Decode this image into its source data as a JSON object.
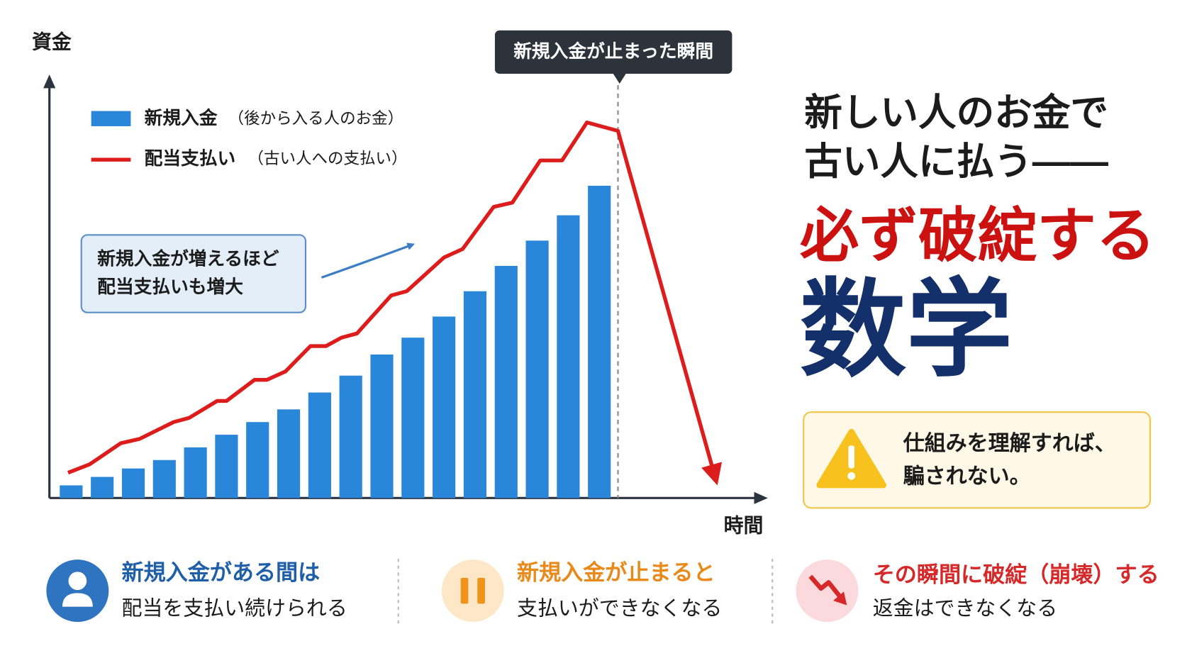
{
  "chart_data": {
    "type": "bar_line",
    "ylabel": "資金",
    "xlabel": "時間",
    "xlim": [
      0.3,
      23.3
    ],
    "ylim": [
      0,
      100
    ],
    "annotation": "新規入金が止まった瞬間",
    "callout": [
      "新規入金が増えるほど",
      "配当支払いも増大"
    ],
    "series": [
      {
        "name": "新規入金",
        "legend_note": "（後から入る人のお金）",
        "type": "bar",
        "color": "#2a86d8",
        "x": [
          1,
          2,
          3,
          4,
          5,
          6,
          7,
          8,
          9,
          10,
          11,
          12,
          13,
          14,
          15,
          16,
          17,
          18
        ],
        "values": [
          3,
          5,
          7,
          9,
          12,
          15,
          18,
          21,
          25,
          29,
          34,
          38,
          43,
          49,
          55,
          61,
          67,
          74
        ]
      },
      {
        "name": "配当支払い",
        "legend_note": "（古い人への支払い）",
        "type": "line",
        "color": "#dd1c1c",
        "x": [
          0.9,
          1.6,
          2.6,
          3.2,
          4.3,
          4.8,
          5.7,
          6.0,
          6.9,
          7.3,
          7.9,
          8.7,
          9.2,
          9.7,
          10.2,
          11.3,
          11.8,
          13.0,
          13.6,
          14.6,
          15.2,
          16.1,
          16.8,
          17.6,
          18.6,
          21.8
        ],
        "values": [
          6,
          8,
          13,
          14,
          18,
          19,
          23,
          23,
          28,
          28,
          30,
          36,
          36,
          38,
          39,
          48,
          49,
          57,
          59,
          69,
          70,
          80,
          80,
          89,
          87,
          3
        ]
      }
    ]
  },
  "headline": {
    "line1": "新しい人のお金で",
    "line2": "古い人に払う——",
    "line3": "必ず破綻する",
    "line4": "数学"
  },
  "warning": [
    "仕組みを理解すれば、",
    "騙されない。"
  ],
  "points": [
    {
      "title": "新規入金がある間は",
      "text": "配当を支払い続けられる"
    },
    {
      "title": "新規入金が止まると",
      "text": "支払いができなくなる"
    },
    {
      "title": "その瞬間に破綻（崩壊）する",
      "text": "返金はできなくなる"
    }
  ]
}
